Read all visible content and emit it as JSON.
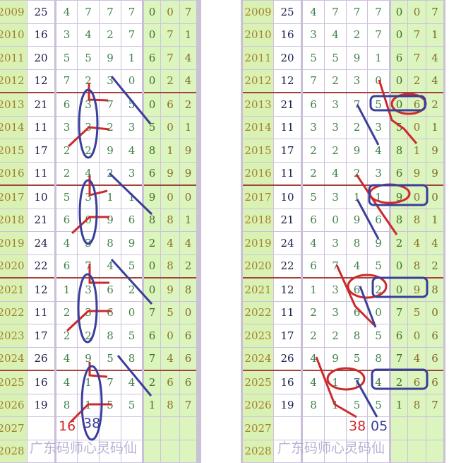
{
  "columns": [
    "year",
    "sum",
    "d1",
    "d2",
    "d3",
    "d4",
    "g1",
    "g2",
    "g3"
  ],
  "rows": [
    {
      "year": "2009",
      "sum": "25",
      "digits": [
        "4",
        "7",
        "7",
        "7"
      ],
      "tail": [
        "0",
        "0",
        "7"
      ]
    },
    {
      "year": "2010",
      "sum": "16",
      "digits": [
        "3",
        "4",
        "2",
        "7"
      ],
      "tail": [
        "0",
        "7",
        "1"
      ]
    },
    {
      "year": "2011",
      "sum": "20",
      "digits": [
        "5",
        "5",
        "9",
        "1"
      ],
      "tail": [
        "6",
        "7",
        "4"
      ]
    },
    {
      "year": "2012",
      "sum": "12",
      "digits": [
        "7",
        "2",
        "3",
        "0"
      ],
      "tail": [
        "0",
        "2",
        "4"
      ]
    },
    {
      "year": "2013",
      "sum": "21",
      "digits": [
        "6",
        "3",
        "7",
        "5"
      ],
      "tail": [
        "0",
        "6",
        "2"
      ]
    },
    {
      "year": "2014",
      "sum": "11",
      "digits": [
        "3",
        "3",
        "2",
        "3"
      ],
      "tail": [
        "5",
        "0",
        "1"
      ]
    },
    {
      "year": "2015",
      "sum": "17",
      "digits": [
        "2",
        "2",
        "9",
        "4"
      ],
      "tail": [
        "8",
        "1",
        "9"
      ]
    },
    {
      "year": "2016",
      "sum": "11",
      "digits": [
        "2",
        "4",
        "2",
        "3"
      ],
      "tail": [
        "6",
        "9",
        "9"
      ]
    },
    {
      "year": "2017",
      "sum": "10",
      "digits": [
        "5",
        "3",
        "1",
        "1"
      ],
      "tail": [
        "9",
        "0",
        "0"
      ]
    },
    {
      "year": "2018",
      "sum": "21",
      "digits": [
        "6",
        "0",
        "9",
        "6"
      ],
      "tail": [
        "8",
        "8",
        "1"
      ]
    },
    {
      "year": "2019",
      "sum": "24",
      "digits": [
        "4",
        "3",
        "8",
        "9"
      ],
      "tail": [
        "2",
        "4",
        "4"
      ]
    },
    {
      "year": "2020",
      "sum": "22",
      "digits": [
        "6",
        "7",
        "4",
        "5"
      ],
      "tail": [
        "0",
        "8",
        "2"
      ]
    },
    {
      "year": "2021",
      "sum": "12",
      "digits": [
        "1",
        "3",
        "6",
        "2"
      ],
      "tail": [
        "0",
        "9",
        "8"
      ]
    },
    {
      "year": "2022",
      "sum": "11",
      "digits": [
        "2",
        "3",
        "6",
        "0"
      ],
      "tail": [
        "7",
        "5",
        "0"
      ]
    },
    {
      "year": "2023",
      "sum": "17",
      "digits": [
        "2",
        "2",
        "8",
        "5"
      ],
      "tail": [
        "6",
        "0",
        "6"
      ]
    },
    {
      "year": "2024",
      "sum": "26",
      "digits": [
        "4",
        "9",
        "5",
        "8"
      ],
      "tail": [
        "7",
        "4",
        "6"
      ]
    },
    {
      "year": "2025",
      "sum": "16",
      "digits": [
        "4",
        "1",
        "7",
        "4"
      ],
      "tail": [
        "2",
        "6",
        "6"
      ]
    },
    {
      "year": "2026",
      "sum": "19",
      "digits": [
        "8",
        "1",
        "5",
        "5"
      ],
      "tail": [
        "1",
        "8",
        "7"
      ]
    },
    {
      "year": "2027",
      "sum": "",
      "digits": [
        "",
        "",
        "",
        ""
      ],
      "tail": [
        "",
        "",
        ""
      ]
    },
    {
      "year": "2028",
      "sum": "",
      "digits": [
        "",
        "",
        "",
        ""
      ],
      "tail": [
        "",
        "",
        ""
      ]
    }
  ],
  "group_separators_after": [
    "2012",
    "2016",
    "2020",
    "2024"
  ],
  "watermark": "广东码师心灵码仙",
  "annotations": {
    "left": {
      "red_label": "16",
      "blue_label": "38"
    },
    "right": {
      "red_label": "38",
      "blue_label": "05"
    }
  },
  "colors": {
    "annotation_red": "#cc2a2a",
    "annotation_blue": "#3a3f9a",
    "year_bg": "#d9f2b4",
    "separator": "#a3423b"
  }
}
